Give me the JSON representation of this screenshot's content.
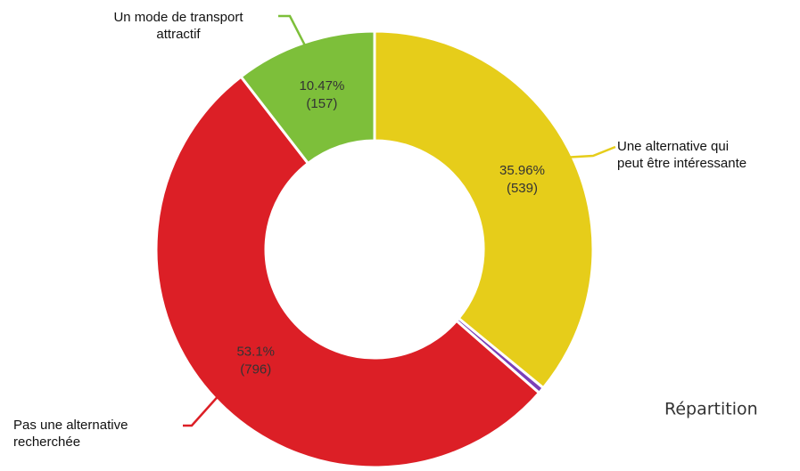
{
  "chart_data": {
    "type": "donut",
    "categories": [
      "Une alternative qui peut être intéressante",
      null,
      "Pas une alternative recherchée",
      "Un mode de transport attractif"
    ],
    "label_lines": [
      [
        "Une alternative qui",
        "peut être intéressante"
      ],
      null,
      [
        "Pas une alternative",
        "recherchée"
      ],
      [
        "Un mode de transport",
        "attractif"
      ]
    ],
    "values": [
      35.96,
      0.47,
      53.1,
      10.47
    ],
    "value_labels": [
      "35.96%",
      null,
      "53.1%",
      "10.47%"
    ],
    "count_labels": [
      "(539)",
      null,
      "(796)",
      "(157)"
    ],
    "colors": [
      "#e6cd1a",
      "#7a3fb8",
      "#dc1f26",
      "#7dbf3a"
    ],
    "caption": "Répartition"
  }
}
